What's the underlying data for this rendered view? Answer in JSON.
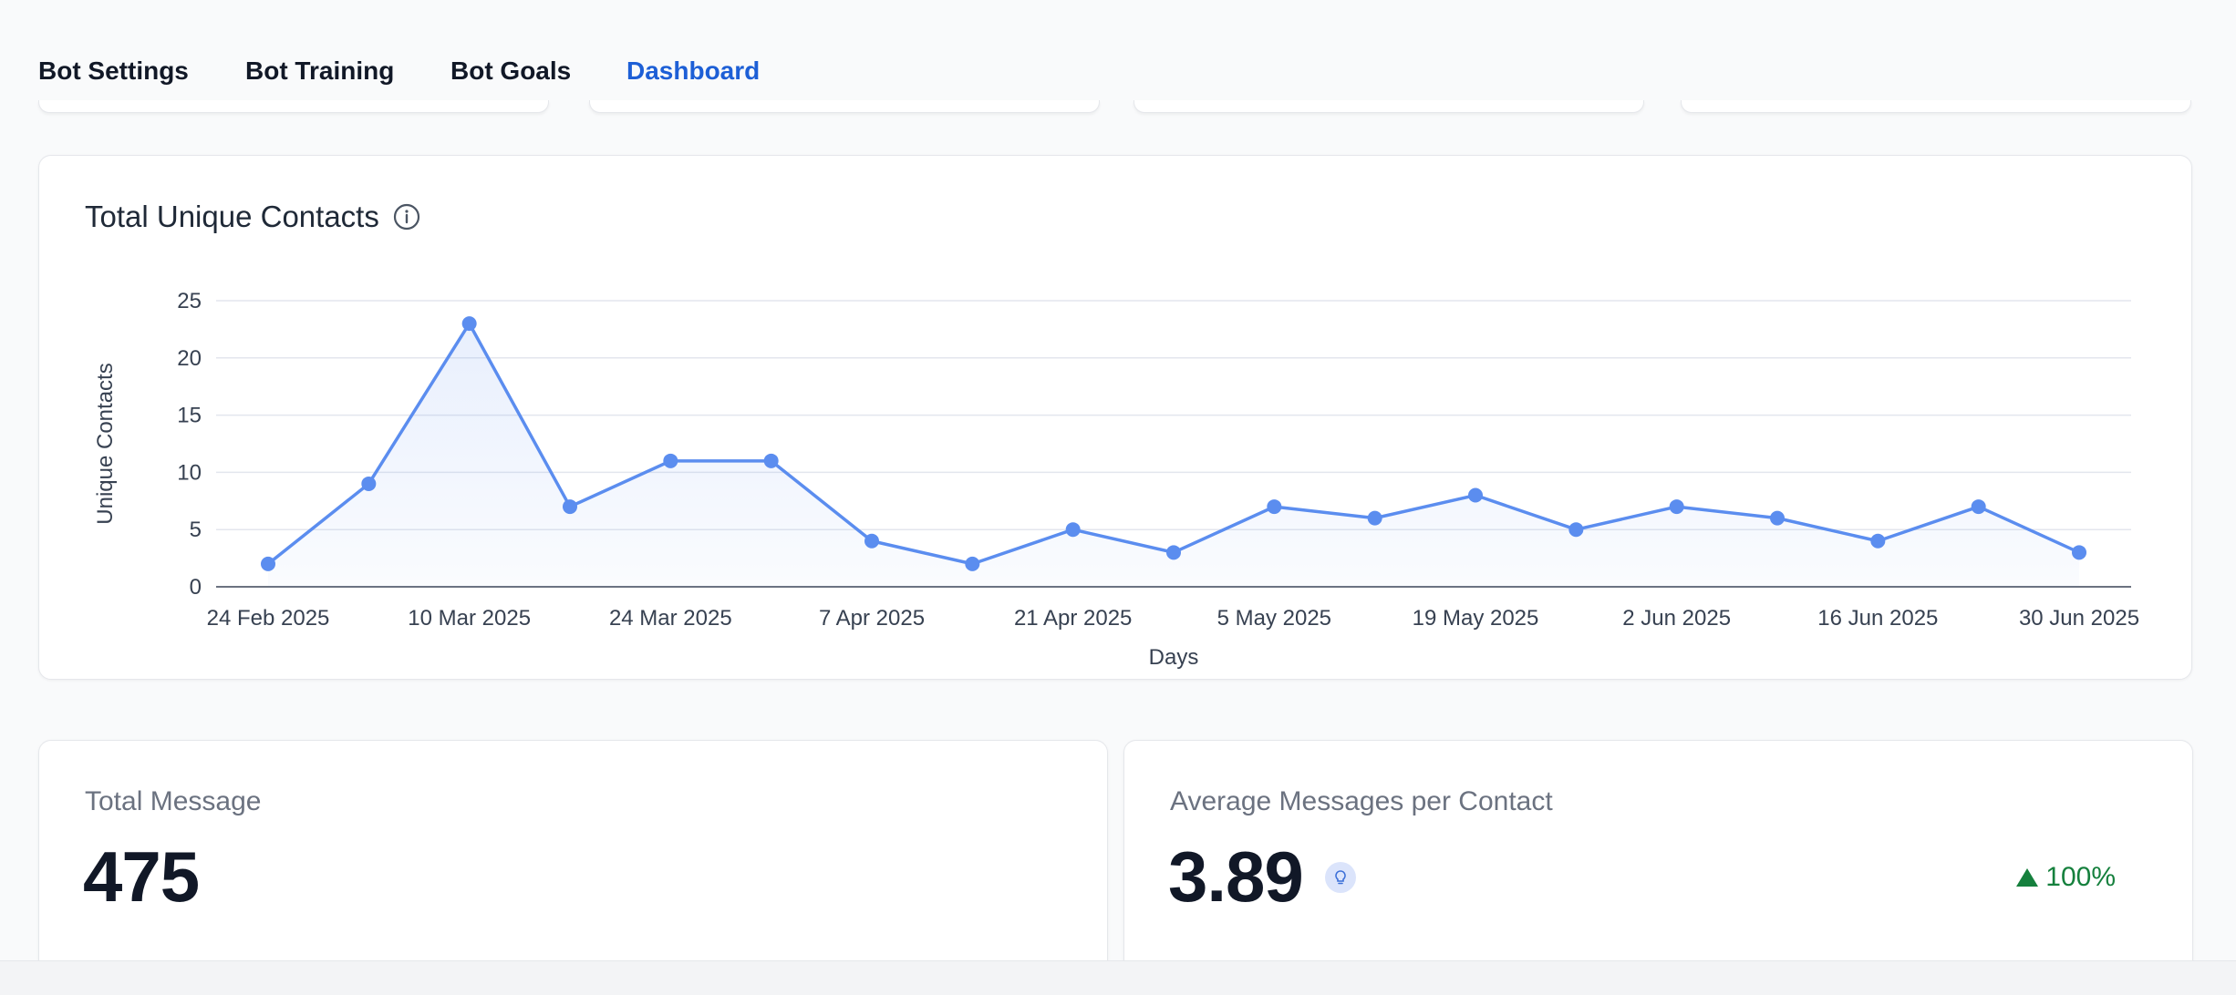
{
  "tabs": [
    {
      "label": "Bot Settings",
      "active": false
    },
    {
      "label": "Bot Training",
      "active": false
    },
    {
      "label": "Bot Goals",
      "active": false
    },
    {
      "label": "Dashboard",
      "active": true
    }
  ],
  "chart_card": {
    "title": "Total Unique Contacts"
  },
  "chart_data": {
    "type": "line",
    "title": "Total Unique Contacts",
    "xlabel": "Days",
    "ylabel": "Unique Contacts",
    "ylim": [
      0,
      25
    ],
    "yticks": [
      0,
      5,
      10,
      15,
      20,
      25
    ],
    "x_tick_labels": [
      "24 Feb 2025",
      "10 Mar 2025",
      "24 Mar 2025",
      "7 Apr 2025",
      "21 Apr 2025",
      "5 May 2025",
      "19 May 2025",
      "2 Jun 2025",
      "16 Jun 2025",
      "30 Jun 2025"
    ],
    "x": [
      "24 Feb 2025",
      "3 Mar 2025",
      "10 Mar 2025",
      "17 Mar 2025",
      "24 Mar 2025",
      "31 Mar 2025",
      "7 Apr 2025",
      "14 Apr 2025",
      "21 Apr 2025",
      "28 Apr 2025",
      "5 May 2025",
      "12 May 2025",
      "19 May 2025",
      "26 May 2025",
      "2 Jun 2025",
      "9 Jun 2025",
      "16 Jun 2025",
      "23 Jun 2025",
      "30 Jun 2025"
    ],
    "values": [
      2,
      9,
      23,
      7,
      11,
      11,
      4,
      2,
      5,
      3,
      7,
      6,
      8,
      5,
      7,
      6,
      4,
      7,
      3
    ],
    "grid": true,
    "area_fill": true,
    "colors": {
      "line": "#5b8def",
      "point": "#5b8def",
      "grid": "#e3e6ee",
      "axis": "#6b7280"
    }
  },
  "stats": {
    "total_message": {
      "label": "Total Message",
      "value": "475"
    },
    "avg_messages": {
      "label": "Average Messages per Contact",
      "value": "3.89",
      "change": "100%",
      "change_direction": "up"
    }
  },
  "icons": {
    "info": "info-icon",
    "bulb": "lightbulb-icon",
    "trend": "triangle-up-icon"
  },
  "colors": {
    "accent": "#1d5fd6",
    "positive": "#15803d",
    "text_muted": "#6b7280"
  }
}
